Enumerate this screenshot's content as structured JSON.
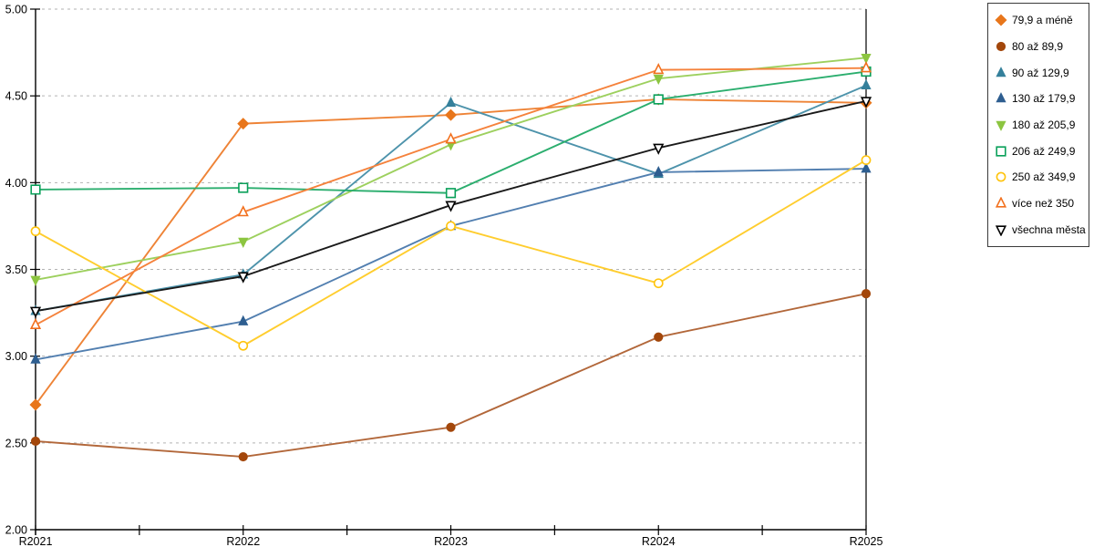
{
  "chart_data": {
    "type": "line",
    "title": "",
    "xlabel": "",
    "ylabel": "",
    "x_categories": [
      "R2021",
      "R2022",
      "R2023",
      "R2024",
      "R2025"
    ],
    "ylim": [
      2.0,
      5.0
    ],
    "ytick_step": 0.5,
    "ytick_labels": [
      "2.00",
      "2.50",
      "3.00",
      "3.50",
      "4.00",
      "4.50",
      "5.00"
    ],
    "grid": "horizontal-dashed",
    "gridline_color": "#b3b3b3",
    "axis_color": "#000000",
    "legend_position": "top-right",
    "series": [
      {
        "name": "79,9 a méně",
        "marker": "diamond",
        "fill": "filled",
        "color": "#e8761b",
        "line_color": "#ee8336",
        "values": [
          2.72,
          4.34,
          4.39,
          4.48,
          4.46
        ]
      },
      {
        "name": "80 až 89,9",
        "marker": "circle",
        "fill": "filled",
        "color": "#a3470b",
        "line_color": "#b2673a",
        "values": [
          2.51,
          2.42,
          2.59,
          3.11,
          3.36
        ]
      },
      {
        "name": "90 až 129,9",
        "marker": "triangle-up",
        "fill": "filled",
        "color": "#35809b",
        "line_color": "#4d93ab",
        "values": [
          3.26,
          3.47,
          4.46,
          4.05,
          4.56
        ]
      },
      {
        "name": "130 až 179,9",
        "marker": "triangle-up",
        "fill": "filled",
        "color": "#2e5e90",
        "line_color": "#527fb0",
        "values": [
          2.98,
          3.2,
          3.75,
          4.06,
          4.08
        ]
      },
      {
        "name": "180 až 205,9",
        "marker": "triangle-down",
        "fill": "filled",
        "color": "#8cc540",
        "line_color": "#9dd05e",
        "values": [
          3.44,
          3.66,
          4.22,
          4.6,
          4.72
        ]
      },
      {
        "name": "206 až 249,9",
        "marker": "square",
        "fill": "open",
        "color": "#0aa05a",
        "line_color": "#2bae6e",
        "values": [
          3.96,
          3.97,
          3.94,
          4.48,
          4.64
        ]
      },
      {
        "name": "250 až 349,9",
        "marker": "circle",
        "fill": "open",
        "color": "#ffc40d",
        "line_color": "#ffcd2e",
        "values": [
          3.72,
          3.06,
          3.75,
          3.42,
          4.13
        ]
      },
      {
        "name": "více než 350",
        "marker": "triangle-up",
        "fill": "open",
        "color": "#f2701d",
        "line_color": "#f5823c",
        "values": [
          3.18,
          3.83,
          4.25,
          4.65,
          4.66
        ]
      },
      {
        "name": "všechna města",
        "marker": "triangle-down",
        "fill": "open",
        "color": "#000000",
        "line_color": "#1a1a1a",
        "values": [
          3.26,
          3.46,
          3.87,
          4.2,
          4.47
        ]
      }
    ]
  }
}
